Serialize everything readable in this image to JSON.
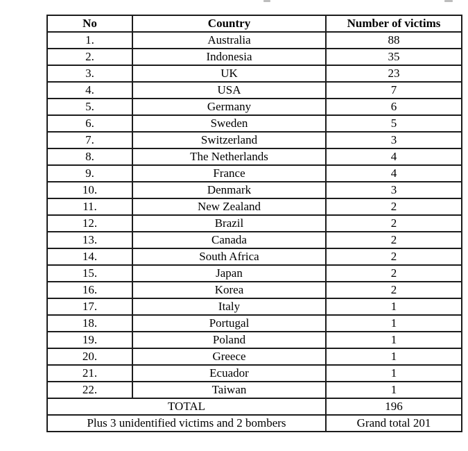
{
  "table": {
    "headers": [
      "No",
      "Country",
      "Number of victims"
    ],
    "rows": [
      {
        "no": "1.",
        "country": "Australia",
        "victims": "88"
      },
      {
        "no": "2.",
        "country": "Indonesia",
        "victims": "35"
      },
      {
        "no": "3.",
        "country": "UK",
        "victims": "23"
      },
      {
        "no": "4.",
        "country": "USA",
        "victims": "7"
      },
      {
        "no": "5.",
        "country": "Germany",
        "victims": "6"
      },
      {
        "no": "6.",
        "country": "Sweden",
        "victims": "5"
      },
      {
        "no": "7.",
        "country": "Switzerland",
        "victims": "3"
      },
      {
        "no": "8.",
        "country": "The Netherlands",
        "victims": "4"
      },
      {
        "no": "9.",
        "country": "France",
        "victims": "4"
      },
      {
        "no": "10.",
        "country": "Denmark",
        "victims": "3"
      },
      {
        "no": "11.",
        "country": "New Zealand",
        "victims": "2"
      },
      {
        "no": "12.",
        "country": "Brazil",
        "victims": "2"
      },
      {
        "no": "13.",
        "country": "Canada",
        "victims": "2"
      },
      {
        "no": "14.",
        "country": "South Africa",
        "victims": "2"
      },
      {
        "no": "15.",
        "country": "Japan",
        "victims": "2"
      },
      {
        "no": "16.",
        "country": "Korea",
        "victims": "2"
      },
      {
        "no": "17.",
        "country": "Italy",
        "victims": "1"
      },
      {
        "no": "18.",
        "country": "Portugal",
        "victims": "1"
      },
      {
        "no": "19.",
        "country": "Poland",
        "victims": "1"
      },
      {
        "no": "20.",
        "country": "Greece",
        "victims": "1"
      },
      {
        "no": "21.",
        "country": "Ecuador",
        "victims": "1"
      },
      {
        "no": "22.",
        "country": "Taiwan",
        "victims": "1"
      }
    ],
    "total": {
      "label": "TOTAL",
      "value": "196"
    },
    "footer": {
      "label": "Plus 3 unidentified victims and 2 bombers",
      "value": "Grand total 201"
    }
  }
}
